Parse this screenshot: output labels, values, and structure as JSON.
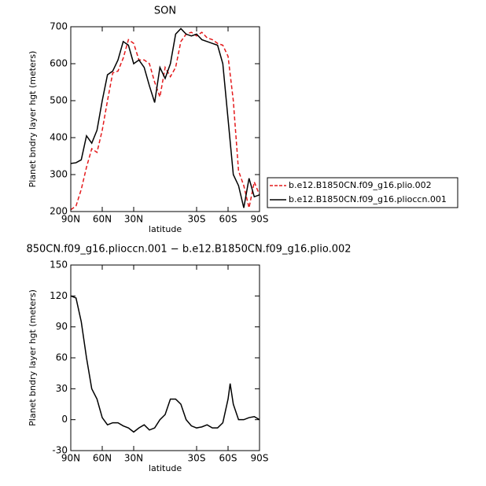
{
  "chart_data": [
    {
      "type": "line",
      "title": "SON",
      "x_label": "latitude",
      "y_label": "Planet bndry layer hgt (meters)",
      "x": [
        90,
        85,
        80,
        75,
        70,
        65,
        60,
        55,
        50,
        45,
        40,
        35,
        30,
        25,
        20,
        15,
        10,
        5,
        0,
        -5,
        -10,
        -15,
        -20,
        -25,
        -30,
        -35,
        -40,
        -45,
        -50,
        -55,
        -60,
        -65,
        -70,
        -75,
        -80,
        -85,
        -90
      ],
      "series": [
        {
          "name": "b.e12.B1850CN.f09_g16.plio.002",
          "color": "#e41a1c",
          "line_style": "dashed",
          "values": [
            205,
            215,
            260,
            320,
            370,
            360,
            420,
            500,
            575,
            580,
            615,
            665,
            655,
            610,
            610,
            600,
            550,
            510,
            590,
            565,
            590,
            660,
            680,
            685,
            675,
            685,
            670,
            665,
            655,
            650,
            620,
            500,
            310,
            270,
            210,
            280,
            245
          ]
        },
        {
          "name": "b.e12.B1850CN.f09_g16.plioccn.001",
          "color": "#000000",
          "line_style": "solid",
          "values": [
            330,
            332,
            340,
            405,
            385,
            420,
            500,
            570,
            580,
            610,
            660,
            650,
            600,
            610,
            590,
            540,
            495,
            590,
            560,
            600,
            680,
            695,
            680,
            675,
            680,
            665,
            660,
            655,
            650,
            600,
            450,
            300,
            270,
            210,
            290,
            240,
            245
          ]
        }
      ],
      "xlim": [
        90,
        -90
      ],
      "xticks": [
        {
          "value": 90,
          "label": "90N"
        },
        {
          "value": 60,
          "label": "60N"
        },
        {
          "value": 30,
          "label": "30N"
        },
        {
          "value": -30,
          "label": "30S"
        },
        {
          "value": -60,
          "label": "60S"
        },
        {
          "value": -90,
          "label": "90S"
        }
      ],
      "ylim": [
        200,
        700
      ],
      "yticks": [
        200,
        300,
        400,
        500,
        600,
        700
      ],
      "legend": "right"
    },
    {
      "type": "line",
      "title": "850CN.f09_g16.plioccn.001 − b.e12.B1850CN.f09_g16.plio.002",
      "x_label": "latitude",
      "y_label": "Planet bndry layer hgt (meters)",
      "x": [
        90,
        85,
        80,
        75,
        70,
        65,
        60,
        55,
        50,
        45,
        40,
        35,
        30,
        25,
        20,
        15,
        10,
        5,
        0,
        -5,
        -10,
        -15,
        -20,
        -25,
        -30,
        -35,
        -40,
        -45,
        -50,
        -55,
        -60,
        -62,
        -65,
        -70,
        -75,
        -80,
        -85,
        -90
      ],
      "values": [
        120,
        118,
        95,
        60,
        30,
        20,
        2,
        -5,
        -3,
        -3,
        -6,
        -8,
        -12,
        -8,
        -5,
        -10,
        -8,
        0,
        5,
        20,
        20,
        15,
        0,
        -6,
        -8,
        -7,
        -5,
        -8,
        -8,
        -3,
        20,
        35,
        15,
        0,
        0,
        2,
        3,
        0
      ],
      "color": "#000000",
      "xlim": [
        90,
        -90
      ],
      "xticks": [
        {
          "value": 90,
          "label": "90N"
        },
        {
          "value": 60,
          "label": "60N"
        },
        {
          "value": 30,
          "label": "30N"
        },
        {
          "value": -30,
          "label": "30S"
        },
        {
          "value": -60,
          "label": "60S"
        },
        {
          "value": -90,
          "label": "90S"
        }
      ],
      "ylim": [
        -30,
        150
      ],
      "yticks": [
        -30,
        0,
        30,
        60,
        90,
        120,
        150
      ]
    }
  ]
}
